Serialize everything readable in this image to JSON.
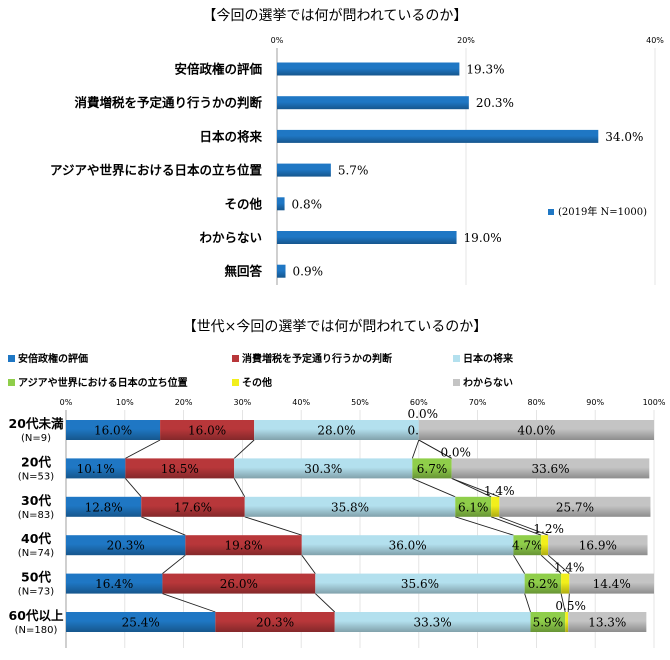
{
  "chart_data": [
    {
      "type": "bar",
      "orientation": "horizontal",
      "title": "【今回の選挙では何が問われているのか】",
      "categories": [
        "安倍政権の評価",
        "消費増税を予定通り行うかの判断",
        "日本の将来",
        "アジアや世界における日本の立ち位置",
        "その他",
        "わからない",
        "無回答"
      ],
      "series": [
        {
          "name": "(2019年 N=1000)",
          "values": [
            19.3,
            20.3,
            34.0,
            5.7,
            0.8,
            19.0,
            0.9
          ]
        }
      ],
      "value_labels": [
        "19.3%",
        "20.3%",
        "34.0%",
        "5.7%",
        "0.8%",
        "19.0%",
        "0.9%"
      ],
      "xlim": [
        0,
        40
      ],
      "xticks": [
        "0%",
        "20%",
        "40%"
      ],
      "legend_position": "right",
      "color": "#1f77c4"
    },
    {
      "type": "bar",
      "orientation": "horizontal",
      "stacked": "100%",
      "title": "【世代×今回の選挙では何が問われているのか】",
      "categories": [
        "20代未満",
        "20代",
        "30代",
        "40代",
        "50代",
        "60代以上"
      ],
      "category_sublabels": [
        "(N=9)",
        "(N=53)",
        "(N=83)",
        "(N=74)",
        "(N=73)",
        "(N=180)"
      ],
      "series": [
        {
          "name": "安倍政権の評価",
          "color": "#1f77c4",
          "values": [
            16.0,
            10.1,
            12.8,
            20.3,
            16.4,
            25.4
          ],
          "labels": [
            "16.0%",
            "10.1%",
            "12.8%",
            "20.3%",
            "16.4%",
            "25.4%"
          ]
        },
        {
          "name": "消費増税を予定通り行うかの判断",
          "color": "#b8373a",
          "values": [
            16.0,
            18.5,
            17.6,
            19.8,
            26.0,
            20.3
          ],
          "labels": [
            "16.0%",
            "18.5%",
            "17.6%",
            "19.8%",
            "26.0%",
            "20.3%"
          ]
        },
        {
          "name": "日本の将来",
          "color": "#b3e0ee",
          "values": [
            28.0,
            30.3,
            35.8,
            36.0,
            35.6,
            33.3
          ],
          "labels": [
            "28.0%",
            "30.3%",
            "35.8%",
            "36.0%",
            "35.6%",
            "33.3%"
          ]
        },
        {
          "name": "アジアや世界における日本の立ち位置",
          "color": "#8fce4a",
          "values": [
            0.0,
            6.7,
            6.1,
            4.7,
            6.2,
            5.9
          ],
          "labels": [
            "0.0%",
            "6.7%",
            "6.1%",
            "4.7%",
            "6.2%",
            "5.9%"
          ]
        },
        {
          "name": "その他",
          "color": "#f2ef1b",
          "values": [
            0.0,
            0.0,
            1.4,
            1.2,
            1.4,
            0.5
          ],
          "labels": [
            "0.0%",
            "0.0%",
            "1.4%",
            "1.2%",
            "1.4%",
            "0.5%"
          ]
        },
        {
          "name": "わからない",
          "color": "#c4c4c4",
          "values": [
            40.0,
            33.6,
            25.7,
            16.9,
            14.4,
            13.3
          ],
          "labels": [
            "40.0%",
            "33.6%",
            "25.7%",
            "16.9%",
            "14.4%",
            "13.3%"
          ]
        }
      ],
      "xlim": [
        0,
        100
      ],
      "xticks": [
        "0%",
        "10%",
        "20%",
        "30%",
        "40%",
        "50%",
        "60%",
        "70%",
        "80%",
        "90%",
        "100%"
      ],
      "legend_position": "top",
      "series_lines": true
    }
  ]
}
